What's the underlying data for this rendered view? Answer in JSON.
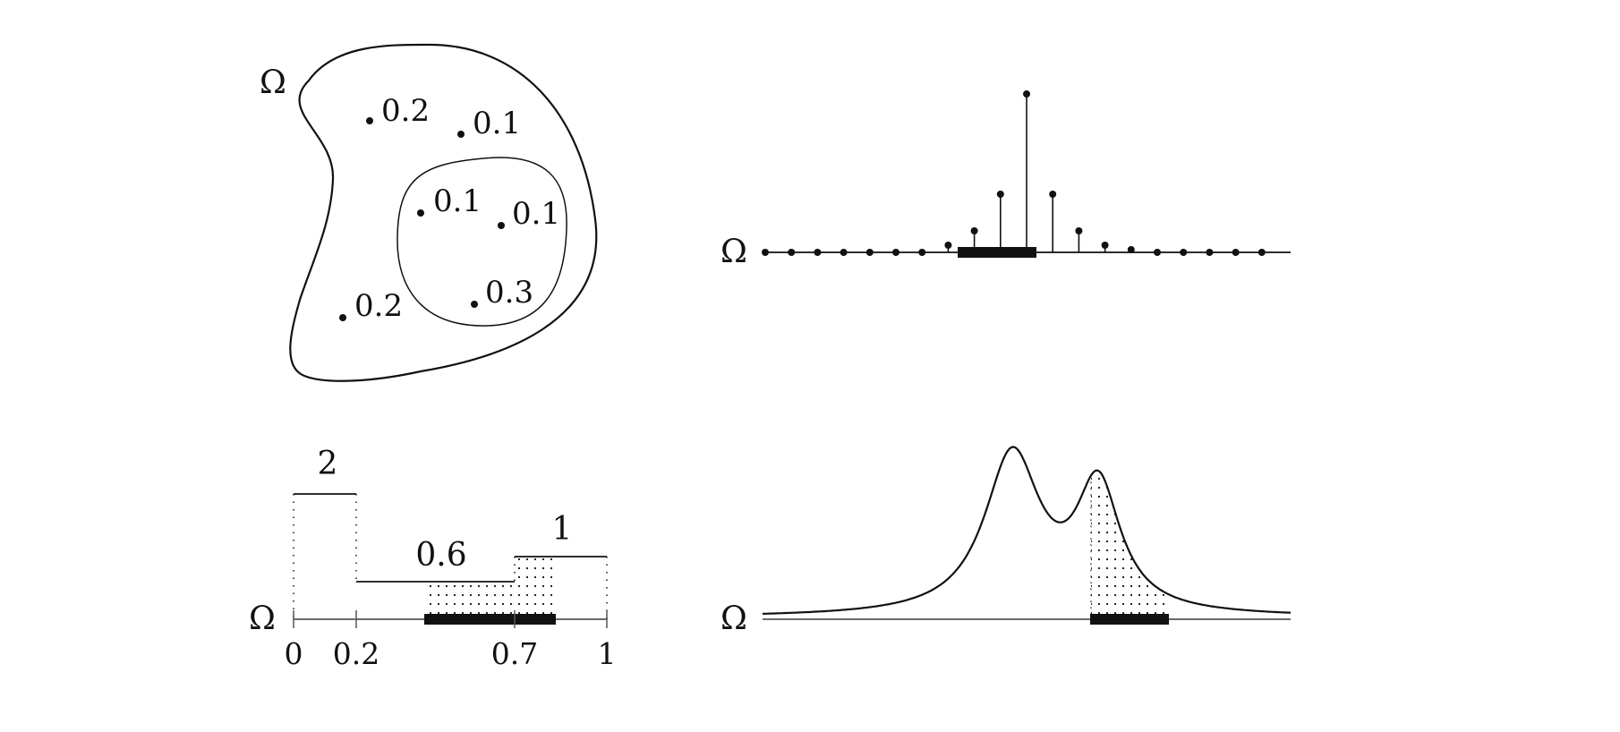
{
  "symbol": "Ω",
  "panels": {
    "discrete_set": {
      "omega": "Ω",
      "points": [
        {
          "label": "0.2"
        },
        {
          "label": "0.1"
        },
        {
          "label": "0.1"
        },
        {
          "label": "0.1"
        },
        {
          "label": "0.2"
        },
        {
          "label": "0.3"
        }
      ]
    },
    "spike_train": {
      "omega": "Ω"
    },
    "step_density": {
      "omega": "Ω",
      "step_labels": [
        "2",
        "0.6",
        "1"
      ],
      "ticks": [
        "0",
        "0.2",
        "0.7",
        "1"
      ],
      "steps": [
        {
          "from": 0,
          "to": 0.2,
          "height": 2
        },
        {
          "from": 0.2,
          "to": 0.7,
          "height": 0.6
        },
        {
          "from": 0.7,
          "to": 1,
          "height": 1
        }
      ]
    },
    "continuous_density": {
      "omega": "Ω"
    }
  },
  "colors": {
    "ink": "#111111",
    "axis": "#555555"
  }
}
